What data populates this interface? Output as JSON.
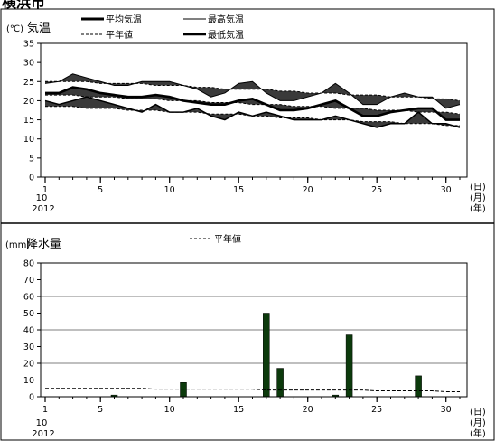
{
  "title": "横浜市",
  "temperature": {
    "chart_data": {
      "type": "line",
      "title": "気温",
      "unit_label": "(℃)",
      "x": [
        1,
        2,
        3,
        4,
        5,
        6,
        7,
        8,
        9,
        10,
        11,
        12,
        13,
        14,
        15,
        16,
        17,
        18,
        19,
        20,
        21,
        22,
        23,
        24,
        25,
        26,
        27,
        28,
        29,
        30,
        31
      ],
      "x_ticks": [
        "1",
        "5",
        "10",
        "15",
        "20",
        "25",
        "30"
      ],
      "x_tick_values": [
        1,
        5,
        10,
        15,
        20,
        25,
        30
      ],
      "first_tick_sub": [
        "10",
        "2012"
      ],
      "x_unit_labels": [
        "(日)",
        "(月)",
        "(年)"
      ],
      "ylim": [
        0,
        35
      ],
      "y_ticks": [
        "0",
        "5",
        "10",
        "15",
        "20",
        "25",
        "30",
        "35"
      ],
      "legend": {
        "mean": "平均気温",
        "normal": "平年値",
        "max": "最高気温",
        "min": "最低気温"
      },
      "series": [
        {
          "key": "max_normal",
          "values": [
            25,
            25,
            25,
            25,
            24.5,
            24.5,
            24.5,
            24.5,
            24,
            24,
            24,
            23.5,
            23.5,
            23,
            23,
            23,
            23,
            22.5,
            22.5,
            22,
            22,
            22,
            21.5,
            21.5,
            21.5,
            21,
            21,
            21,
            20.5,
            20.5,
            20
          ]
        },
        {
          "key": "max",
          "values": [
            24.5,
            25,
            27,
            26,
            25,
            24,
            24,
            25,
            25,
            25,
            24,
            23,
            21,
            22,
            24.5,
            25,
            22,
            20,
            20,
            21,
            22,
            24.5,
            22,
            19,
            19,
            21,
            22,
            21,
            21,
            18,
            19
          ]
        },
        {
          "key": "mean_normal",
          "values": [
            21.5,
            21.5,
            21.5,
            21,
            21,
            21,
            20.5,
            20.5,
            20.5,
            20,
            20,
            20,
            19.5,
            19.5,
            19.5,
            19,
            19,
            19,
            18.5,
            18.5,
            18.5,
            18,
            18,
            18,
            17.5,
            17.5,
            17.5,
            17,
            17,
            17,
            16.5
          ]
        },
        {
          "key": "mean",
          "values": [
            22,
            22,
            23.5,
            23,
            22,
            21.5,
            21,
            21,
            21.5,
            21,
            20,
            19.5,
            19,
            19,
            20,
            20.5,
            19,
            17.5,
            17.5,
            18,
            19,
            20,
            18,
            16,
            16,
            17,
            17.5,
            18,
            18,
            15,
            15
          ]
        },
        {
          "key": "min_normal",
          "values": [
            18.5,
            18.5,
            18.5,
            18,
            18,
            18,
            17.5,
            17.5,
            17.5,
            17,
            17,
            17,
            16.5,
            16.5,
            16.5,
            16,
            16,
            15.5,
            15.5,
            15.5,
            15,
            15,
            15,
            14.5,
            14.5,
            14.5,
            14,
            14,
            14,
            13.5,
            13.5
          ]
        },
        {
          "key": "min",
          "values": [
            20,
            19,
            20,
            21,
            20,
            19,
            18,
            17,
            19,
            17,
            17,
            18,
            16,
            15,
            17,
            16,
            17,
            16,
            15,
            15,
            15,
            16,
            15,
            14,
            13,
            14,
            14,
            17,
            14,
            14,
            13
          ]
        }
      ]
    }
  },
  "precipitation": {
    "chart_data": {
      "type": "bar",
      "title": "降水量",
      "unit_label": "(mm)",
      "x": [
        1,
        2,
        3,
        4,
        5,
        6,
        7,
        8,
        9,
        10,
        11,
        12,
        13,
        14,
        15,
        16,
        17,
        18,
        19,
        20,
        21,
        22,
        23,
        24,
        25,
        26,
        27,
        28,
        29,
        30,
        31
      ],
      "values": [
        0,
        0,
        0,
        0,
        0,
        1,
        0,
        0,
        0,
        0,
        8.5,
        0,
        0,
        0,
        0,
        0,
        50,
        17,
        0,
        0,
        0,
        1,
        37,
        0,
        0,
        0,
        0,
        12.5,
        0,
        0,
        0
      ],
      "normal": [
        5,
        5,
        5,
        5,
        5,
        5,
        5,
        5,
        4.5,
        4.5,
        4.5,
        4.5,
        4.5,
        4.5,
        4.5,
        4.5,
        4,
        4,
        4,
        4,
        4,
        4,
        4,
        4,
        3.5,
        3.5,
        3.5,
        3.5,
        3.5,
        3,
        3
      ],
      "x_ticks": [
        "1",
        "5",
        "10",
        "15",
        "20",
        "25",
        "30"
      ],
      "x_tick_values": [
        1,
        5,
        10,
        15,
        20,
        25,
        30
      ],
      "first_tick_sub": [
        "10",
        "2012"
      ],
      "x_unit_labels": [
        "(日)",
        "(月)",
        "(年)"
      ],
      "ylim": [
        0,
        80
      ],
      "y_ticks": [
        "0",
        "10",
        "20",
        "30",
        "40",
        "50",
        "60",
        "70",
        "80"
      ],
      "legend": {
        "normal": "平年値"
      }
    }
  }
}
